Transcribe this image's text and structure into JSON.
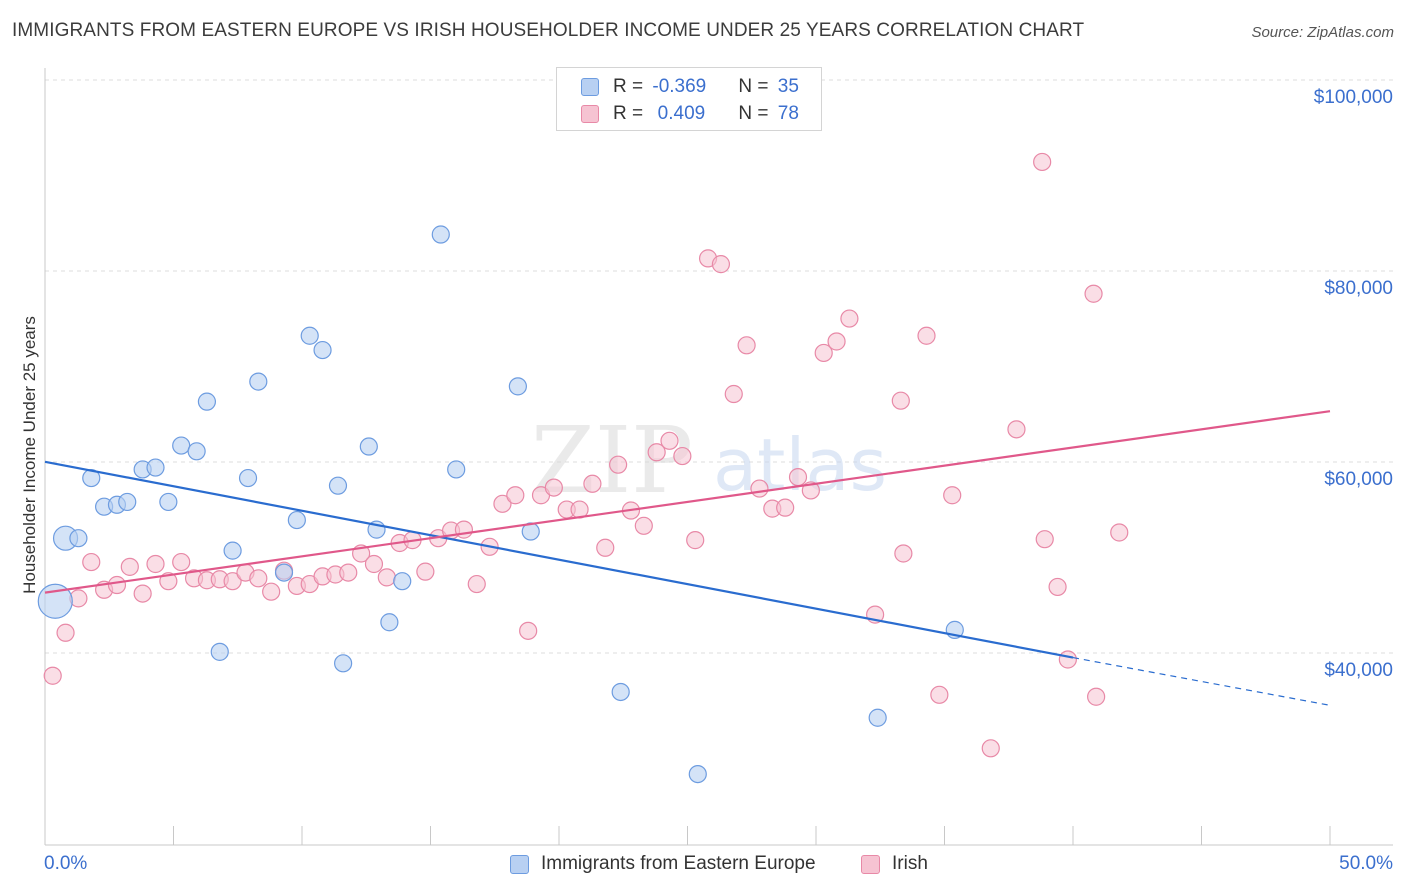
{
  "title": "IMMIGRANTS FROM EASTERN EUROPE VS IRISH HOUSEHOLDER INCOME UNDER 25 YEARS CORRELATION CHART",
  "source": "Source: ZipAtlas.com",
  "watermark": {
    "zip": "ZIP",
    "atlas": "atlas"
  },
  "colors": {
    "blue_fill": "#b8d0f2",
    "blue_stroke": "#6d9ce0",
    "blue_line": "#2a6ccf",
    "pink_fill": "#f6c3d2",
    "pink_stroke": "#e889a7",
    "pink_line": "#e0588a",
    "axis_value": "#3b6fce"
  },
  "legend": {
    "rows": [
      {
        "r_label": "R = ",
        "r_value": "-0.369",
        "n_label": "N = ",
        "n_value": "35"
      },
      {
        "r_label": "R = ",
        "r_value": " 0.409",
        "n_label": "N = ",
        "n_value": "78"
      }
    ]
  },
  "bottom_legend": [
    "Immigrants from Eastern Europe",
    "Irish"
  ],
  "chart_data": {
    "type": "scatter",
    "title": "IMMIGRANTS FROM EASTERN EUROPE VS IRISH HOUSEHOLDER INCOME UNDER 25 YEARS CORRELATION CHART",
    "xlabel": "",
    "ylabel": "Householder Income Under 25 years",
    "xlim": [
      0,
      50
    ],
    "ylim": [
      22000,
      102000
    ],
    "x_tick_labels": [
      "0.0%",
      "50.0%"
    ],
    "y_ticks": [
      40000,
      60000,
      80000,
      100000
    ],
    "y_tick_labels": [
      "$40,000",
      "$60,000",
      "$80,000",
      "$100,000"
    ],
    "grid": true,
    "legend_position": "top-center",
    "series": [
      {
        "name": "Immigrants from Eastern Europe",
        "r": -0.369,
        "n": 35,
        "trend": {
          "x": [
            0,
            40
          ],
          "y": [
            61800,
            41300
          ],
          "dashed_to": [
            50,
            36300
          ]
        },
        "points": [
          {
            "x": 0.4,
            "y": 47200,
            "s": 3
          },
          {
            "x": 0.8,
            "y": 53800,
            "s": 2
          },
          {
            "x": 1.3,
            "y": 53800,
            "s": 1
          },
          {
            "x": 1.8,
            "y": 60100,
            "s": 1
          },
          {
            "x": 2.3,
            "y": 57100,
            "s": 1
          },
          {
            "x": 2.8,
            "y": 57300,
            "s": 1
          },
          {
            "x": 3.2,
            "y": 57600,
            "s": 1
          },
          {
            "x": 3.8,
            "y": 61000,
            "s": 1
          },
          {
            "x": 4.3,
            "y": 61200,
            "s": 1
          },
          {
            "x": 4.8,
            "y": 57600,
            "s": 1
          },
          {
            "x": 5.3,
            "y": 63500,
            "s": 1
          },
          {
            "x": 5.9,
            "y": 62900,
            "s": 1
          },
          {
            "x": 6.3,
            "y": 68100,
            "s": 1
          },
          {
            "x": 6.8,
            "y": 41900,
            "s": 1
          },
          {
            "x": 7.3,
            "y": 52500,
            "s": 1
          },
          {
            "x": 7.9,
            "y": 60100,
            "s": 1
          },
          {
            "x": 8.3,
            "y": 70200,
            "s": 1
          },
          {
            "x": 9.3,
            "y": 50200,
            "s": 1
          },
          {
            "x": 9.8,
            "y": 55700,
            "s": 1
          },
          {
            "x": 10.3,
            "y": 75000,
            "s": 1
          },
          {
            "x": 10.8,
            "y": 73500,
            "s": 1
          },
          {
            "x": 11.4,
            "y": 59300,
            "s": 1
          },
          {
            "x": 11.6,
            "y": 40700,
            "s": 1
          },
          {
            "x": 12.6,
            "y": 63400,
            "s": 1
          },
          {
            "x": 12.9,
            "y": 54700,
            "s": 1
          },
          {
            "x": 13.4,
            "y": 45000,
            "s": 1
          },
          {
            "x": 13.9,
            "y": 49300,
            "s": 1
          },
          {
            "x": 15.4,
            "y": 85600,
            "s": 1
          },
          {
            "x": 16.0,
            "y": 61000,
            "s": 1
          },
          {
            "x": 18.4,
            "y": 69700,
            "s": 1
          },
          {
            "x": 18.9,
            "y": 54500,
            "s": 1
          },
          {
            "x": 22.4,
            "y": 37700,
            "s": 1
          },
          {
            "x": 25.4,
            "y": 29100,
            "s": 1
          },
          {
            "x": 32.4,
            "y": 35000,
            "s": 1
          },
          {
            "x": 35.4,
            "y": 44200,
            "s": 1
          }
        ]
      },
      {
        "name": "Irish",
        "r": 0.409,
        "n": 78,
        "trend": {
          "x": [
            0,
            50
          ],
          "y": [
            48100,
            67100
          ]
        },
        "points": [
          {
            "x": 0.3,
            "y": 39400
          },
          {
            "x": 0.8,
            "y": 43900
          },
          {
            "x": 1.3,
            "y": 47500
          },
          {
            "x": 1.8,
            "y": 51300
          },
          {
            "x": 2.3,
            "y": 48400
          },
          {
            "x": 2.8,
            "y": 48900
          },
          {
            "x": 3.3,
            "y": 50800
          },
          {
            "x": 3.8,
            "y": 48000
          },
          {
            "x": 4.3,
            "y": 51100
          },
          {
            "x": 4.8,
            "y": 49300
          },
          {
            "x": 5.3,
            "y": 51300
          },
          {
            "x": 5.8,
            "y": 49600
          },
          {
            "x": 6.3,
            "y": 49400
          },
          {
            "x": 6.8,
            "y": 49500
          },
          {
            "x": 7.3,
            "y": 49300
          },
          {
            "x": 7.8,
            "y": 50200
          },
          {
            "x": 8.3,
            "y": 49600
          },
          {
            "x": 8.8,
            "y": 48200
          },
          {
            "x": 9.3,
            "y": 50400
          },
          {
            "x": 9.8,
            "y": 48800
          },
          {
            "x": 10.3,
            "y": 49000
          },
          {
            "x": 10.8,
            "y": 49800
          },
          {
            "x": 11.3,
            "y": 50000
          },
          {
            "x": 11.8,
            "y": 50200
          },
          {
            "x": 12.3,
            "y": 52200
          },
          {
            "x": 12.8,
            "y": 51100
          },
          {
            "x": 13.3,
            "y": 49700
          },
          {
            "x": 13.8,
            "y": 53300
          },
          {
            "x": 14.3,
            "y": 53600
          },
          {
            "x": 14.8,
            "y": 50300
          },
          {
            "x": 15.3,
            "y": 53800
          },
          {
            "x": 15.8,
            "y": 54600
          },
          {
            "x": 16.3,
            "y": 54700
          },
          {
            "x": 16.8,
            "y": 49000
          },
          {
            "x": 17.3,
            "y": 52900
          },
          {
            "x": 17.8,
            "y": 57400
          },
          {
            "x": 18.3,
            "y": 58300
          },
          {
            "x": 18.8,
            "y": 44100
          },
          {
            "x": 19.3,
            "y": 58300
          },
          {
            "x": 19.8,
            "y": 59100
          },
          {
            "x": 20.3,
            "y": 56800
          },
          {
            "x": 20.8,
            "y": 56800
          },
          {
            "x": 21.3,
            "y": 59500
          },
          {
            "x": 21.8,
            "y": 52800
          },
          {
            "x": 22.3,
            "y": 61500
          },
          {
            "x": 22.8,
            "y": 56700
          },
          {
            "x": 23.3,
            "y": 55100
          },
          {
            "x": 23.8,
            "y": 62800
          },
          {
            "x": 24.3,
            "y": 64000
          },
          {
            "x": 24.8,
            "y": 62400
          },
          {
            "x": 25.3,
            "y": 53600
          },
          {
            "x": 25.8,
            "y": 83100
          },
          {
            "x": 26.3,
            "y": 82500
          },
          {
            "x": 26.8,
            "y": 68900
          },
          {
            "x": 27.3,
            "y": 74000
          },
          {
            "x": 27.8,
            "y": 59000
          },
          {
            "x": 28.3,
            "y": 56900
          },
          {
            "x": 28.8,
            "y": 57000
          },
          {
            "x": 29.3,
            "y": 60200
          },
          {
            "x": 29.8,
            "y": 58800
          },
          {
            "x": 30.3,
            "y": 73200
          },
          {
            "x": 30.8,
            "y": 74400
          },
          {
            "x": 31.3,
            "y": 76800
          },
          {
            "x": 32.3,
            "y": 45800
          },
          {
            "x": 33.3,
            "y": 68200
          },
          {
            "x": 33.4,
            "y": 52200
          },
          {
            "x": 34.3,
            "y": 75000
          },
          {
            "x": 34.8,
            "y": 37400
          },
          {
            "x": 35.3,
            "y": 58300
          },
          {
            "x": 36.8,
            "y": 31800
          },
          {
            "x": 37.8,
            "y": 65200
          },
          {
            "x": 38.8,
            "y": 93200
          },
          {
            "x": 38.9,
            "y": 53700
          },
          {
            "x": 39.4,
            "y": 48700
          },
          {
            "x": 39.8,
            "y": 41100
          },
          {
            "x": 40.8,
            "y": 79400
          },
          {
            "x": 40.9,
            "y": 37200
          },
          {
            "x": 41.8,
            "y": 54400
          }
        ]
      }
    ]
  }
}
